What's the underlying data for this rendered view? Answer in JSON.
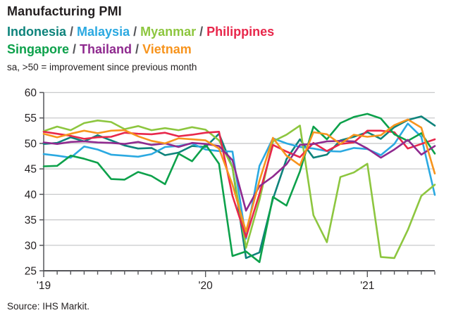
{
  "header": {
    "title": "Manufacturing PMI",
    "subtitle": "sa, >50 = improvement since previous month"
  },
  "legend": {
    "separator": "/",
    "rows": [
      [
        "Indonesia",
        "Malaysia",
        "Myanmar",
        "Philippines"
      ],
      [
        "Singapore",
        "Thailand",
        "Vietnam"
      ]
    ]
  },
  "footer": {
    "source": "Source: IHS Markit."
  },
  "colors": {
    "axis": "#55565A",
    "grid": "#C9CACB",
    "text": "#231F20",
    "background": "#FFFFFF"
  },
  "chart_data": {
    "type": "line",
    "title": "Manufacturing PMI",
    "subtitle": "sa, >50 = improvement since previous month",
    "x_start": "Jan 2019",
    "x_end": "Jun 2021",
    "frequency": "monthly",
    "n_points": 30,
    "x_year_ticks": [
      {
        "label": "'19",
        "month_index": 0
      },
      {
        "label": "'20",
        "month_index": 12
      },
      {
        "label": "'21",
        "month_index": 24
      }
    ],
    "ylim": [
      25,
      60
    ],
    "yticks": [
      25,
      30,
      35,
      40,
      45,
      50,
      55,
      60
    ],
    "grid": "horizontal",
    "legend_position": "top",
    "series": [
      {
        "name": "Indonesia",
        "color": "#0E837B",
        "values": [
          49.9,
          50.1,
          51.2,
          50.4,
          51.6,
          50.6,
          49.6,
          49.0,
          49.1,
          47.7,
          48.2,
          49.5,
          49.3,
          51.9,
          45.3,
          27.5,
          28.6,
          39.1,
          46.9,
          50.8,
          47.2,
          47.8,
          50.6,
          51.3,
          52.2,
          50.9,
          53.2,
          54.6,
          55.3,
          53.5
        ]
      },
      {
        "name": "Malaysia",
        "color": "#2BA9E1",
        "values": [
          47.9,
          47.6,
          47.2,
          49.4,
          48.8,
          47.8,
          47.6,
          47.4,
          47.9,
          49.3,
          49.5,
          50.0,
          48.8,
          48.5,
          48.4,
          31.3,
          45.6,
          51.0,
          50.0,
          49.3,
          49.0,
          48.5,
          48.4,
          49.1,
          48.9,
          47.7,
          49.9,
          53.9,
          51.3,
          39.9
        ]
      },
      {
        "name": "Myanmar",
        "color": "#8DC63F",
        "values": [
          52.4,
          53.3,
          52.6,
          54.0,
          54.5,
          54.2,
          52.8,
          53.4,
          52.6,
          53.0,
          52.6,
          53.2,
          52.7,
          50.6,
          45.3,
          29.5,
          38.9,
          50.4,
          51.7,
          53.5,
          35.9,
          30.6,
          43.4,
          44.3,
          46.0,
          27.7,
          27.5,
          33.0,
          39.7,
          41.9
        ]
      },
      {
        "name": "Philippines",
        "color": "#E8274B",
        "values": [
          52.3,
          51.9,
          51.5,
          50.9,
          51.2,
          51.3,
          52.1,
          51.9,
          51.8,
          52.1,
          51.4,
          51.7,
          52.1,
          52.3,
          39.7,
          31.6,
          40.1,
          49.7,
          48.4,
          47.3,
          50.1,
          48.5,
          49.9,
          50.2,
          52.5,
          52.5,
          52.2,
          49.0,
          49.9,
          50.8
        ]
      },
      {
        "name": "Singapore",
        "color": "#0DA14B",
        "values": [
          45.5,
          45.6,
          47.6,
          47.0,
          46.2,
          43.0,
          42.9,
          44.4,
          43.6,
          42.0,
          48.0,
          46.5,
          49.8,
          46.0,
          27.9,
          28.8,
          26.7,
          39.5,
          37.8,
          44.5,
          53.3,
          50.8,
          54.0,
          55.2,
          55.8,
          54.9,
          51.8,
          50.5,
          52.0,
          48.0
        ]
      },
      {
        "name": "Thailand",
        "color": "#8F2A8F",
        "values": [
          50.2,
          49.9,
          50.3,
          50.4,
          50.2,
          50.1,
          49.9,
          50.3,
          49.7,
          50.0,
          49.3,
          50.1,
          49.9,
          49.5,
          46.7,
          36.8,
          41.6,
          43.5,
          45.9,
          49.7,
          49.9,
          50.4,
          50.5,
          50.4,
          49.0,
          47.2,
          48.8,
          50.7,
          47.8,
          49.5
        ]
      },
      {
        "name": "Vietnam",
        "color": "#F7941D",
        "values": [
          51.9,
          51.2,
          51.9,
          52.5,
          52.0,
          52.5,
          52.6,
          51.4,
          50.5,
          50.0,
          51.0,
          50.8,
          50.6,
          49.0,
          41.9,
          32.7,
          42.7,
          51.1,
          47.6,
          45.7,
          52.2,
          51.8,
          49.9,
          51.7,
          51.3,
          51.6,
          53.6,
          54.7,
          53.1,
          44.1
        ]
      }
    ]
  }
}
